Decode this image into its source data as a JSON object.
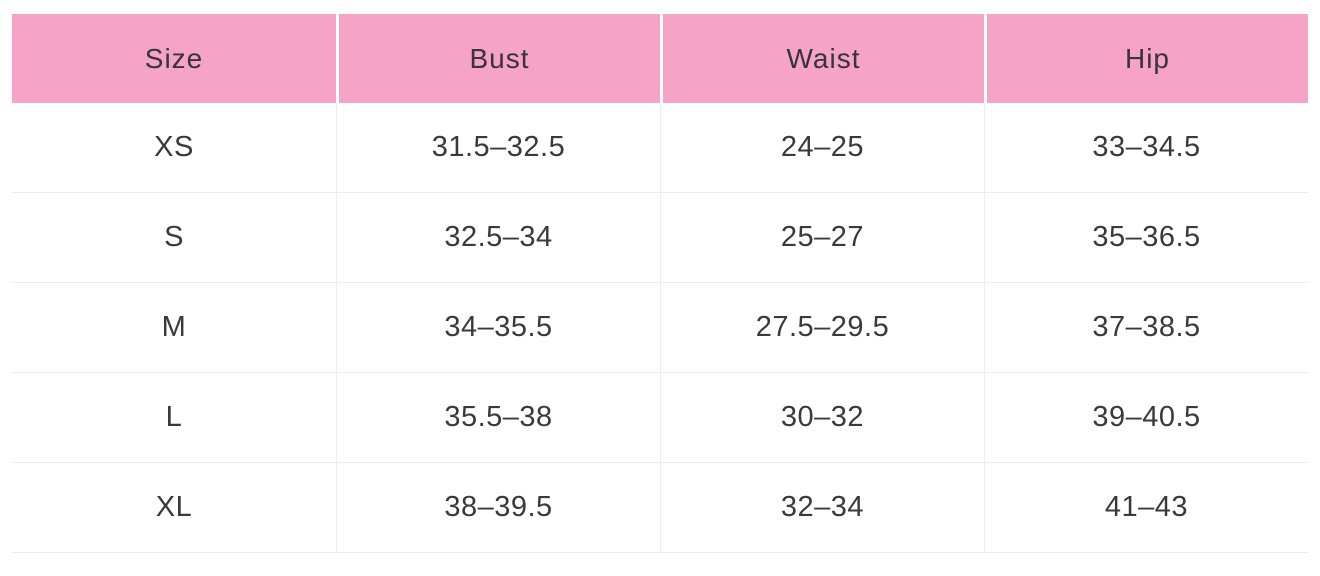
{
  "chart_data": {
    "type": "table",
    "columns": [
      "Size",
      "Bust",
      "Waist",
      "Hip"
    ],
    "rows": [
      [
        "XS",
        "31.5–32.5",
        "24–25",
        "33–34.5"
      ],
      [
        "S",
        "32.5–34",
        "25–27",
        "35–36.5"
      ],
      [
        "M",
        "34–35.5",
        "27.5–29.5",
        "37–38.5"
      ],
      [
        "L",
        "35.5–38",
        "30–32",
        "39–40.5"
      ],
      [
        "XL",
        "38–39.5",
        "32–34",
        "41–43"
      ]
    ],
    "layout": {
      "header_position": "top",
      "grid": "light horizontal and vertical dividers",
      "alignment": "center"
    }
  },
  "style": {
    "header_background": "#F5A4C6",
    "header_text_color": "#39333B",
    "body_text_color": "#3A3A3A",
    "grid_line_color": "#EDEDED",
    "page_background": "#FFFFFF"
  }
}
